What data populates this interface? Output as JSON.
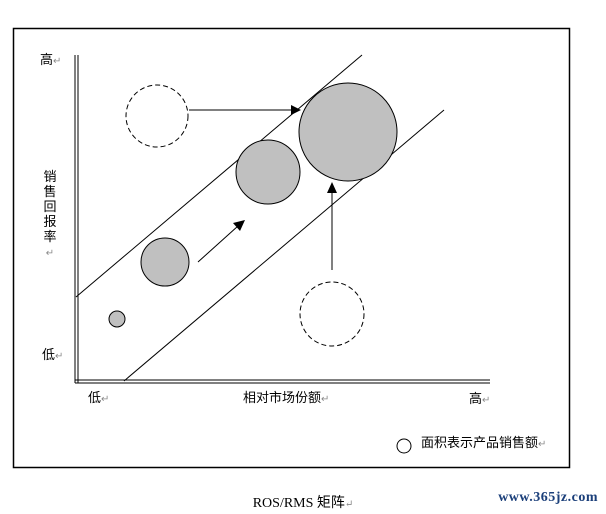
{
  "axes": {
    "y_high": "高",
    "y_low": "低",
    "y_title": "销售回报率",
    "x_low": "低",
    "x_title": "相对市场份额",
    "x_high": "高"
  },
  "legend": {
    "text": "面积表示产品销售额"
  },
  "caption": "ROS/RMS 矩阵",
  "watermark": "www.365jz.com",
  "colors": {
    "bubble_fill": "#c0c0c0",
    "stroke": "#000000"
  }
}
